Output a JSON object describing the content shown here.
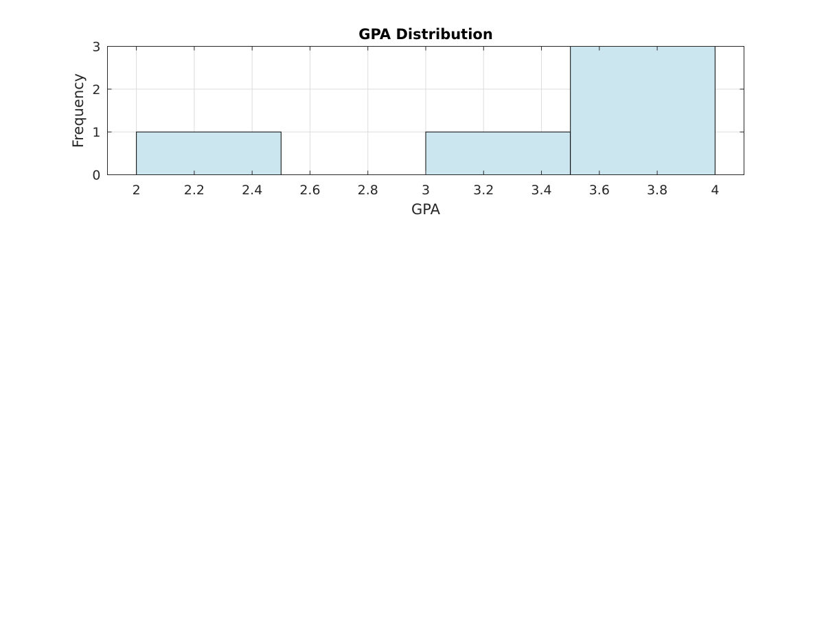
{
  "chart_data": {
    "type": "bar",
    "title": "GPA Distribution",
    "xlabel": "GPA",
    "ylabel": "Frequency",
    "xlim": [
      1.9,
      4.1
    ],
    "ylim": [
      0,
      3
    ],
    "xticks": [
      "2",
      "2.2",
      "2.4",
      "2.6",
      "2.8",
      "3",
      "3.2",
      "3.4",
      "3.6",
      "3.8",
      "4"
    ],
    "yticks": [
      "0",
      "1",
      "2",
      "3"
    ],
    "bins": [
      {
        "start": 2.0,
        "end": 2.5,
        "count": 1
      },
      {
        "start": 2.5,
        "end": 3.0,
        "count": 0
      },
      {
        "start": 3.0,
        "end": 3.5,
        "count": 1
      },
      {
        "start": 3.5,
        "end": 4.0,
        "count": 3
      }
    ],
    "grid": true,
    "bar_color": "#cce6f0",
    "edge_color": "#000000"
  }
}
